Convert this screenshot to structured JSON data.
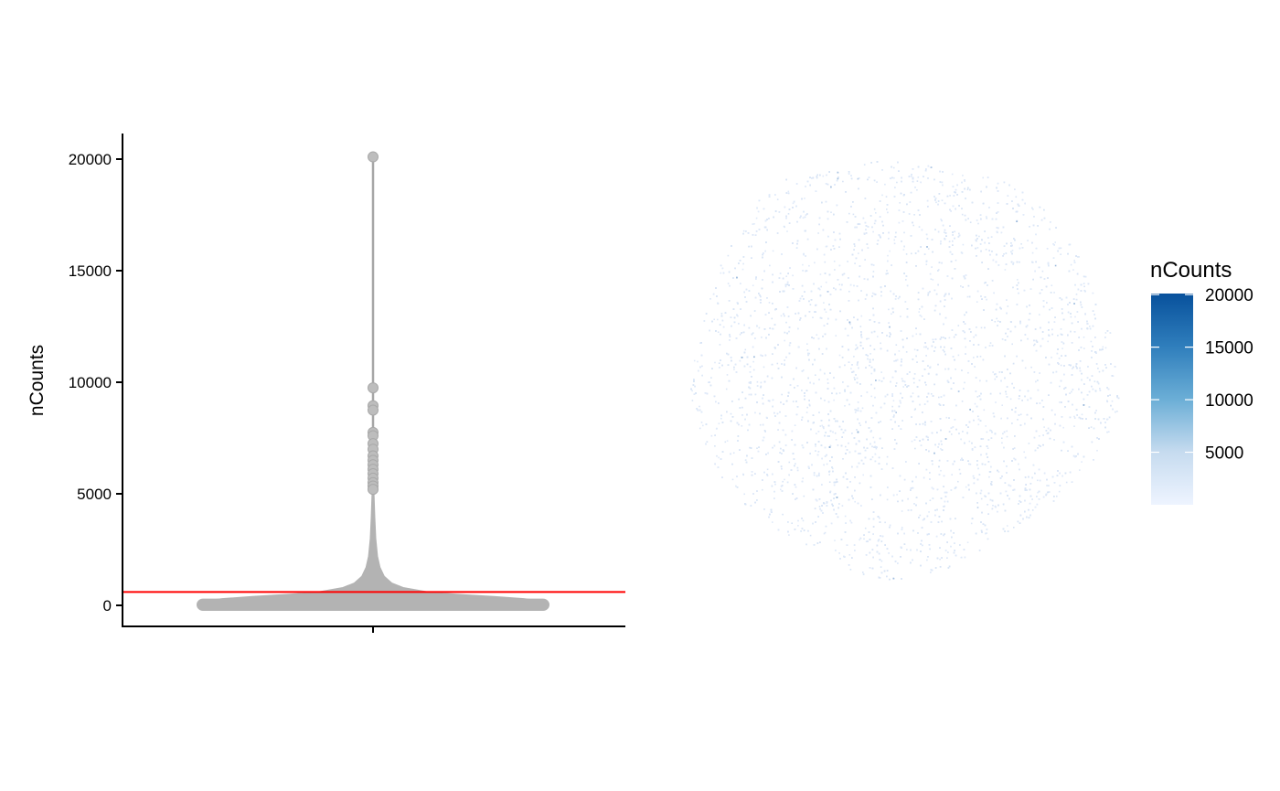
{
  "chart_data": [
    {
      "type": "violin",
      "ylabel": "nCounts",
      "ylim": [
        -900,
        21000
      ],
      "y_ticks": [
        0,
        5000,
        10000,
        15000,
        20000
      ],
      "y_tick_labels": [
        "0",
        "5000",
        "10000",
        "15000",
        "20000"
      ],
      "threshold": 600,
      "threshold_color": "#ff0000",
      "fill_color": "#b3b3b3",
      "outliers": [
        20100,
        9750,
        8950,
        8750,
        7750,
        7600,
        7250,
        7000,
        6700,
        6500,
        6300,
        6100,
        5900,
        5700,
        5500,
        5350,
        5200
      ],
      "density_profile": [
        {
          "y": 0,
          "halfwidth": 0.68
        },
        {
          "y": 100,
          "halfwidth": 0.68
        },
        {
          "y": 200,
          "halfwidth": 0.67
        },
        {
          "y": 300,
          "halfwidth": 0.6
        },
        {
          "y": 400,
          "halfwidth": 0.48
        },
        {
          "y": 500,
          "halfwidth": 0.33
        },
        {
          "y": 600,
          "halfwidth": 0.22
        },
        {
          "y": 800,
          "halfwidth": 0.12
        },
        {
          "y": 1000,
          "halfwidth": 0.075
        },
        {
          "y": 1300,
          "halfwidth": 0.045
        },
        {
          "y": 1700,
          "halfwidth": 0.028
        },
        {
          "y": 2200,
          "halfwidth": 0.018
        },
        {
          "y": 3000,
          "halfwidth": 0.011
        },
        {
          "y": 4000,
          "halfwidth": 0.007
        },
        {
          "y": 5000,
          "halfwidth": 0.004
        }
      ]
    },
    {
      "type": "scatter",
      "colorbar_title": "nCounts",
      "colorbar_ticks": [
        5000,
        10000,
        15000,
        20000
      ],
      "colorbar_tick_labels": [
        "5000",
        "10000",
        "15000",
        "20000"
      ],
      "value_range": [
        0,
        20100
      ],
      "color_low": "#eef4ff",
      "color_high": "#08519c",
      "typical_value": 300
    }
  ]
}
